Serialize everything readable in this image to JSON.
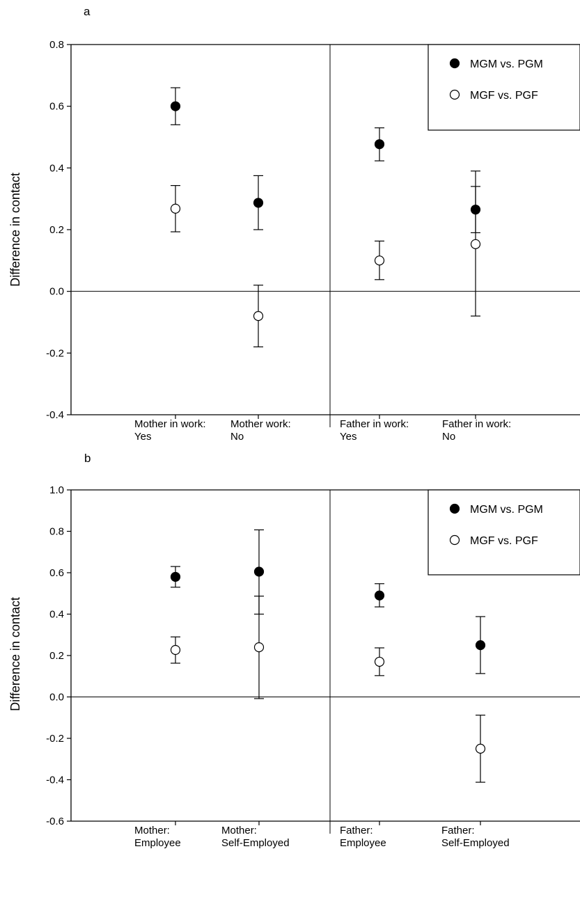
{
  "chart_data": [
    {
      "type": "scatter",
      "panel_label": "a",
      "ylabel": "Difference in contact",
      "ylim": [
        -0.4,
        0.8
      ],
      "yticks": [
        "-0.4",
        "-0.2",
        "0.0",
        "0.2",
        "0.4",
        "0.6",
        "0.8"
      ],
      "categories": [
        [
          "Mother in work:",
          "Yes"
        ],
        [
          "Mother work:",
          "No"
        ],
        [
          "Father in work:",
          "Yes"
        ],
        [
          "Father in work:",
          "No"
        ]
      ],
      "legend": {
        "position": "top-right"
      },
      "series": [
        {
          "name": "MGM vs. PGM",
          "marker": "filled",
          "points": [
            {
              "y": 0.6,
              "lower": 0.54,
              "upper": 0.66
            },
            {
              "y": 0.287,
              "lower": 0.2,
              "upper": 0.375
            },
            {
              "y": 0.477,
              "lower": 0.423,
              "upper": 0.53
            },
            {
              "y": 0.265,
              "lower": 0.19,
              "upper": 0.34
            }
          ]
        },
        {
          "name": "MGF vs. PGF",
          "marker": "open",
          "points": [
            {
              "y": 0.268,
              "lower": 0.193,
              "upper": 0.343
            },
            {
              "y": -0.08,
              "lower": -0.18,
              "upper": 0.02
            },
            {
              "y": 0.1,
              "lower": 0.038,
              "upper": 0.163
            },
            {
              "y": 0.153,
              "lower": -0.08,
              "upper": 0.39
            }
          ]
        }
      ]
    },
    {
      "type": "scatter",
      "panel_label": "b",
      "ylabel": "Difference in contact",
      "ylim": [
        -0.6,
        1.0
      ],
      "yticks": [
        "-0.6",
        "-0.4",
        "-0.2",
        "0.0",
        "0.2",
        "0.4",
        "0.6",
        "0.8",
        "1.0"
      ],
      "categories": [
        [
          "Mother:",
          "Employee"
        ],
        [
          "Mother:",
          "Self-Employed"
        ],
        [
          "Father:",
          "Employee"
        ],
        [
          "Father:",
          "Self-Employed"
        ]
      ],
      "legend": {
        "position": "top-right"
      },
      "series": [
        {
          "name": "MGM vs. PGM",
          "marker": "filled",
          "points": [
            {
              "y": 0.58,
              "lower": 0.53,
              "upper": 0.63
            },
            {
              "y": 0.605,
              "lower": 0.4,
              "upper": 0.807
            },
            {
              "y": 0.49,
              "lower": 0.435,
              "upper": 0.547
            },
            {
              "y": 0.25,
              "lower": 0.113,
              "upper": 0.388
            }
          ]
        },
        {
          "name": "MGF vs. PGF",
          "marker": "open",
          "points": [
            {
              "y": 0.227,
              "lower": 0.163,
              "upper": 0.29
            },
            {
              "y": 0.24,
              "lower": -0.008,
              "upper": 0.487
            },
            {
              "y": 0.17,
              "lower": 0.103,
              "upper": 0.237
            },
            {
              "y": -0.25,
              "lower": -0.412,
              "upper": -0.088
            }
          ]
        }
      ]
    }
  ]
}
